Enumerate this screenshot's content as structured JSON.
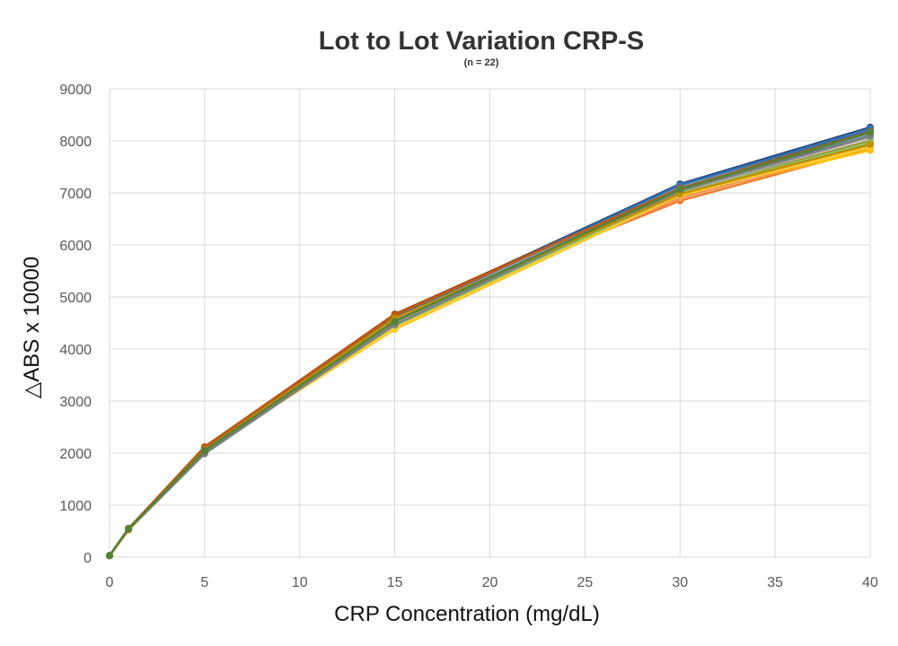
{
  "chart_data": {
    "type": "line",
    "title": "Lot to Lot Variation CRP-S",
    "subtitle": "(n = 22)",
    "xlabel": "CRP Concentration (mg/dL)",
    "ylabel": "△ABS x 10000",
    "xlim": [
      0,
      40
    ],
    "ylim": [
      0,
      9000
    ],
    "x_ticks": [
      "0",
      "5",
      "10",
      "15",
      "20",
      "25",
      "30",
      "35",
      "40"
    ],
    "y_ticks": [
      "0",
      "1000",
      "2000",
      "3000",
      "4000",
      "5000",
      "6000",
      "7000",
      "8000",
      "9000"
    ],
    "grid": true,
    "legend": "none",
    "x": [
      0,
      1,
      5,
      15,
      30,
      40
    ],
    "series": [
      {
        "color": "#4472c4",
        "values": [
          30,
          550,
          2080,
          4620,
          7150,
          8250
        ]
      },
      {
        "color": "#ed7d31",
        "values": [
          30,
          540,
          2110,
          4660,
          6850,
          7850
        ]
      },
      {
        "color": "#a5a5a5",
        "values": [
          30,
          545,
          2000,
          4500,
          7050,
          8100
        ]
      },
      {
        "color": "#ffc000",
        "values": [
          30,
          520,
          2050,
          4380,
          6950,
          7820
        ]
      },
      {
        "color": "#5b9bd5",
        "values": [
          30,
          555,
          2090,
          4560,
          7100,
          8150
        ]
      },
      {
        "color": "#70ad47",
        "values": [
          30,
          535,
          2030,
          4450,
          6980,
          7950
        ]
      },
      {
        "color": "#264478",
        "values": [
          30,
          548,
          2100,
          4640,
          7170,
          8260
        ]
      },
      {
        "color": "#9e480e",
        "values": [
          30,
          552,
          2120,
          4670,
          7120,
          8200
        ]
      },
      {
        "color": "#636363",
        "values": [
          30,
          530,
          1990,
          4480,
          7060,
          8120
        ]
      },
      {
        "color": "#997300",
        "values": [
          30,
          545,
          2070,
          4600,
          7000,
          8000
        ]
      },
      {
        "color": "#43682b",
        "values": [
          30,
          540,
          2040,
          4520,
          7080,
          8180
        ]
      },
      {
        "color": "#698ed0",
        "values": [
          30,
          550,
          2060,
          4580,
          7140,
          8230
        ]
      },
      {
        "color": "#f1975a",
        "values": [
          30,
          538,
          2100,
          4620,
          6900,
          7900
        ]
      },
      {
        "color": "#b7b7b7",
        "values": [
          30,
          542,
          2010,
          4490,
          7020,
          8060
        ]
      },
      {
        "color": "#ffcd33",
        "values": [
          30,
          528,
          2040,
          4400,
          6960,
          7880
        ]
      },
      {
        "color": "#7cafdd",
        "values": [
          30,
          552,
          2080,
          4540,
          7110,
          8140
        ]
      },
      {
        "color": "#8cc168",
        "values": [
          30,
          536,
          2020,
          4460,
          6990,
          7980
        ]
      },
      {
        "color": "#2e75b6",
        "values": [
          30,
          548,
          2090,
          4610,
          7150,
          8220
        ]
      },
      {
        "color": "#c55a11",
        "values": [
          30,
          550,
          2110,
          4650,
          7090,
          8170
        ]
      },
      {
        "color": "#7f7f7f",
        "values": [
          30,
          533,
          2000,
          4470,
          7040,
          8090
        ]
      },
      {
        "color": "#bf9000",
        "values": [
          30,
          540,
          2060,
          4590,
          6980,
          7930
        ]
      },
      {
        "color": "#548235",
        "values": [
          30,
          545,
          2050,
          4530,
          7070,
          8160
        ]
      }
    ]
  }
}
